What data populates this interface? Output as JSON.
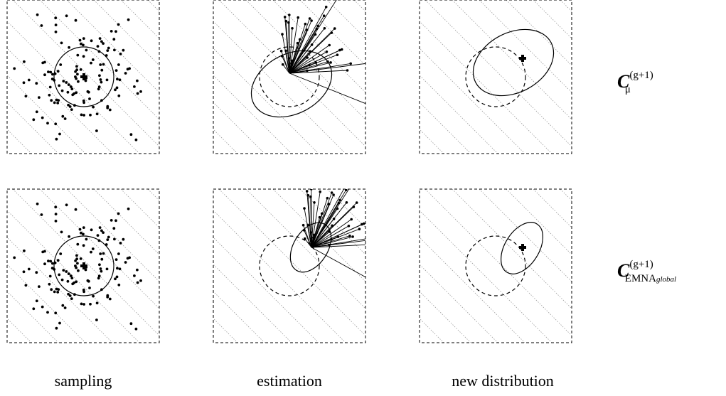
{
  "columns": [
    {
      "label": "sampling"
    },
    {
      "label": "estimation"
    },
    {
      "label": "new distribution"
    }
  ],
  "rows": [
    {
      "symbol": "C",
      "superscript": "(g+1)",
      "subscript": "μ",
      "subscript_italic": ""
    },
    {
      "symbol": "C",
      "superscript": "(g+1)",
      "subscript": "EMNA",
      "subscript_italic": "global"
    }
  ]
}
